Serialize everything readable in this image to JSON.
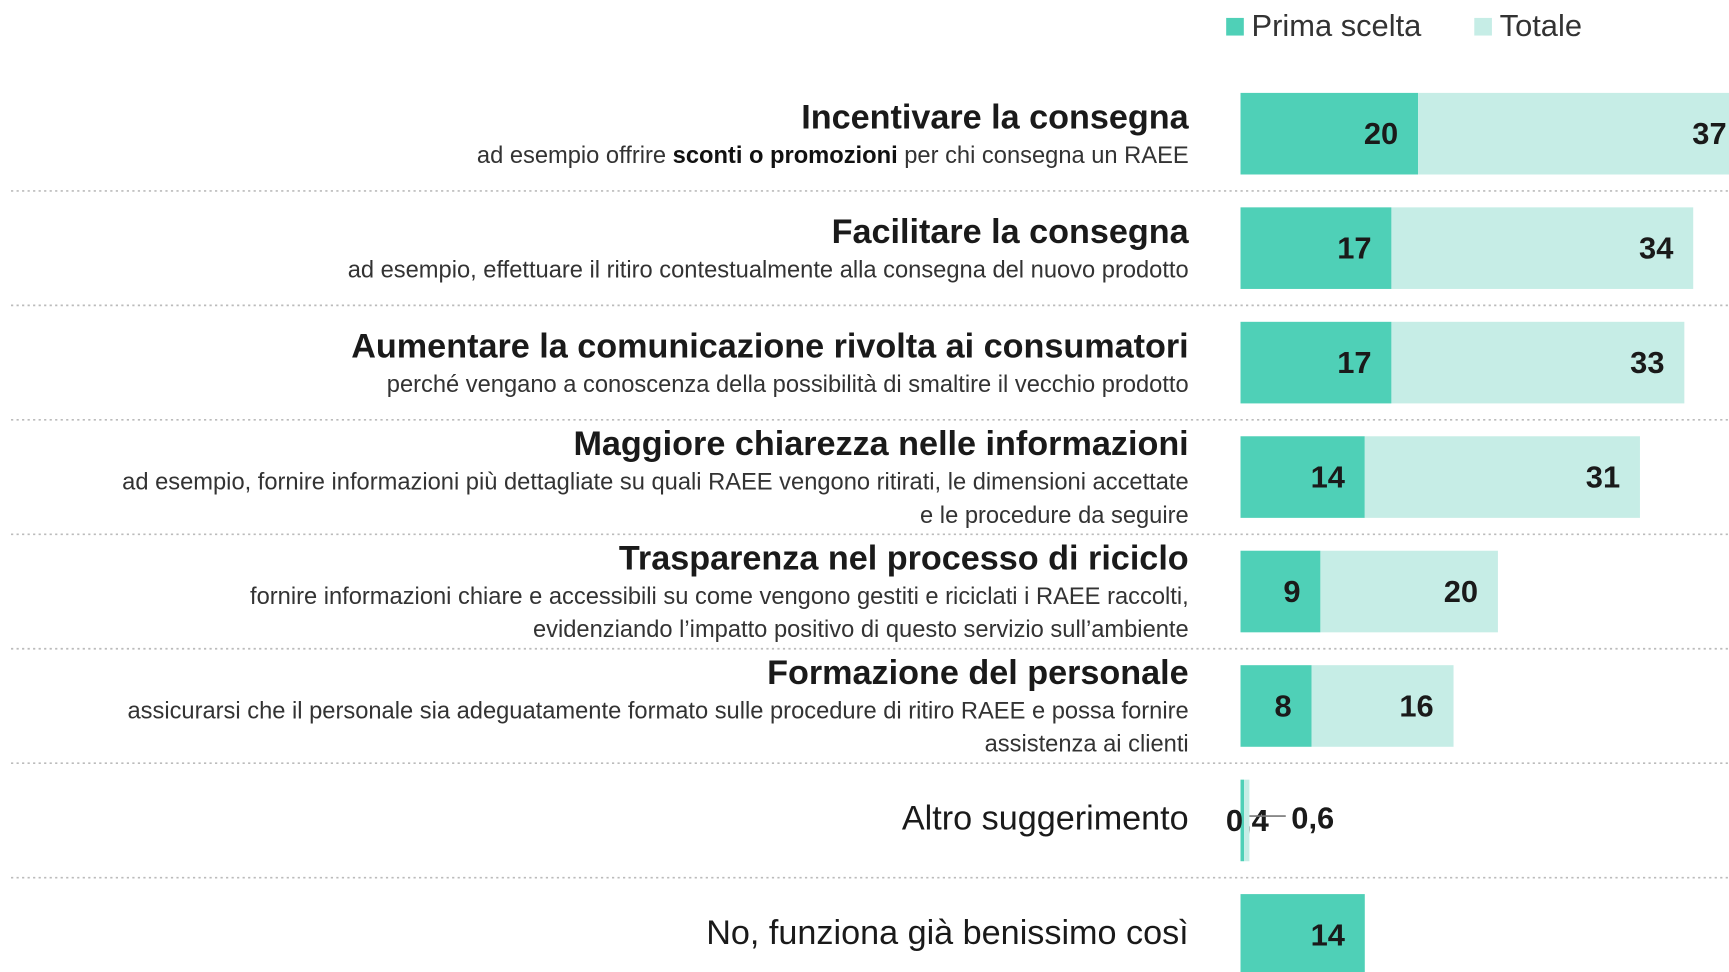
{
  "chart_data": {
    "type": "bar",
    "orientation": "horizontal",
    "stacked": true,
    "categories": [
      "Incentivare la consegna",
      "Facilitare la consegna",
      "Aumentare la comunicazione rivolta ai consumatori",
      "Maggiore chiarezza nelle informazioni",
      "Trasparenza nel processo di riciclo",
      "Formazione del personale",
      "Altro suggerimento",
      "No, funziona già benissimo così"
    ],
    "descriptions": [
      [
        [
          {
            "text": "ad esempio offrire "
          },
          {
            "text": "sconti o promozioni",
            "bold": true
          },
          {
            "text": " per chi consegna un RAEE"
          }
        ]
      ],
      [
        [
          {
            "text": "ad esempio, effettuare il ritiro contestualmente alla consegna del nuovo prodotto"
          }
        ]
      ],
      [
        [
          {
            "text": "perché vengano a conoscenza della possibilità di smaltire il vecchio prodotto"
          }
        ]
      ],
      [
        [
          {
            "text": "ad esempio, fornire informazioni più dettagliate su quali RAEE vengono ritirati, le dimensioni accettate"
          }
        ],
        [
          {
            "text": "e le procedure da seguire"
          }
        ]
      ],
      [
        [
          {
            "text": "fornire informazioni chiare e accessibili su come vengono gestiti e riciclati i RAEE raccolti,"
          }
        ],
        [
          {
            "text": "evidenziando l’impatto positivo di questo servizio sull’ambiente"
          }
        ]
      ],
      [
        [
          {
            "text": "assicurarsi che il personale sia adeguatamente formato sulle procedure di ritiro RAEE e possa fornire"
          }
        ],
        [
          {
            "text": "assistenza ai clienti"
          }
        ]
      ],
      null,
      null
    ],
    "series": [
      {
        "name": "Prima scelta",
        "color": "#4fd0b7",
        "values": [
          20,
          17,
          17,
          14,
          9,
          8,
          0.4,
          14
        ],
        "value_labels": [
          "20",
          "17",
          "17",
          "14",
          "9",
          "8",
          "0,4",
          "14"
        ]
      },
      {
        "name": "Totale",
        "color": "#c6ede6",
        "values": [
          37,
          34,
          33,
          31,
          20,
          16,
          0.6,
          null
        ],
        "value_labels": [
          "37",
          "34",
          "33",
          "31",
          "20",
          "16",
          "0,6",
          null
        ]
      }
    ]
  }
}
